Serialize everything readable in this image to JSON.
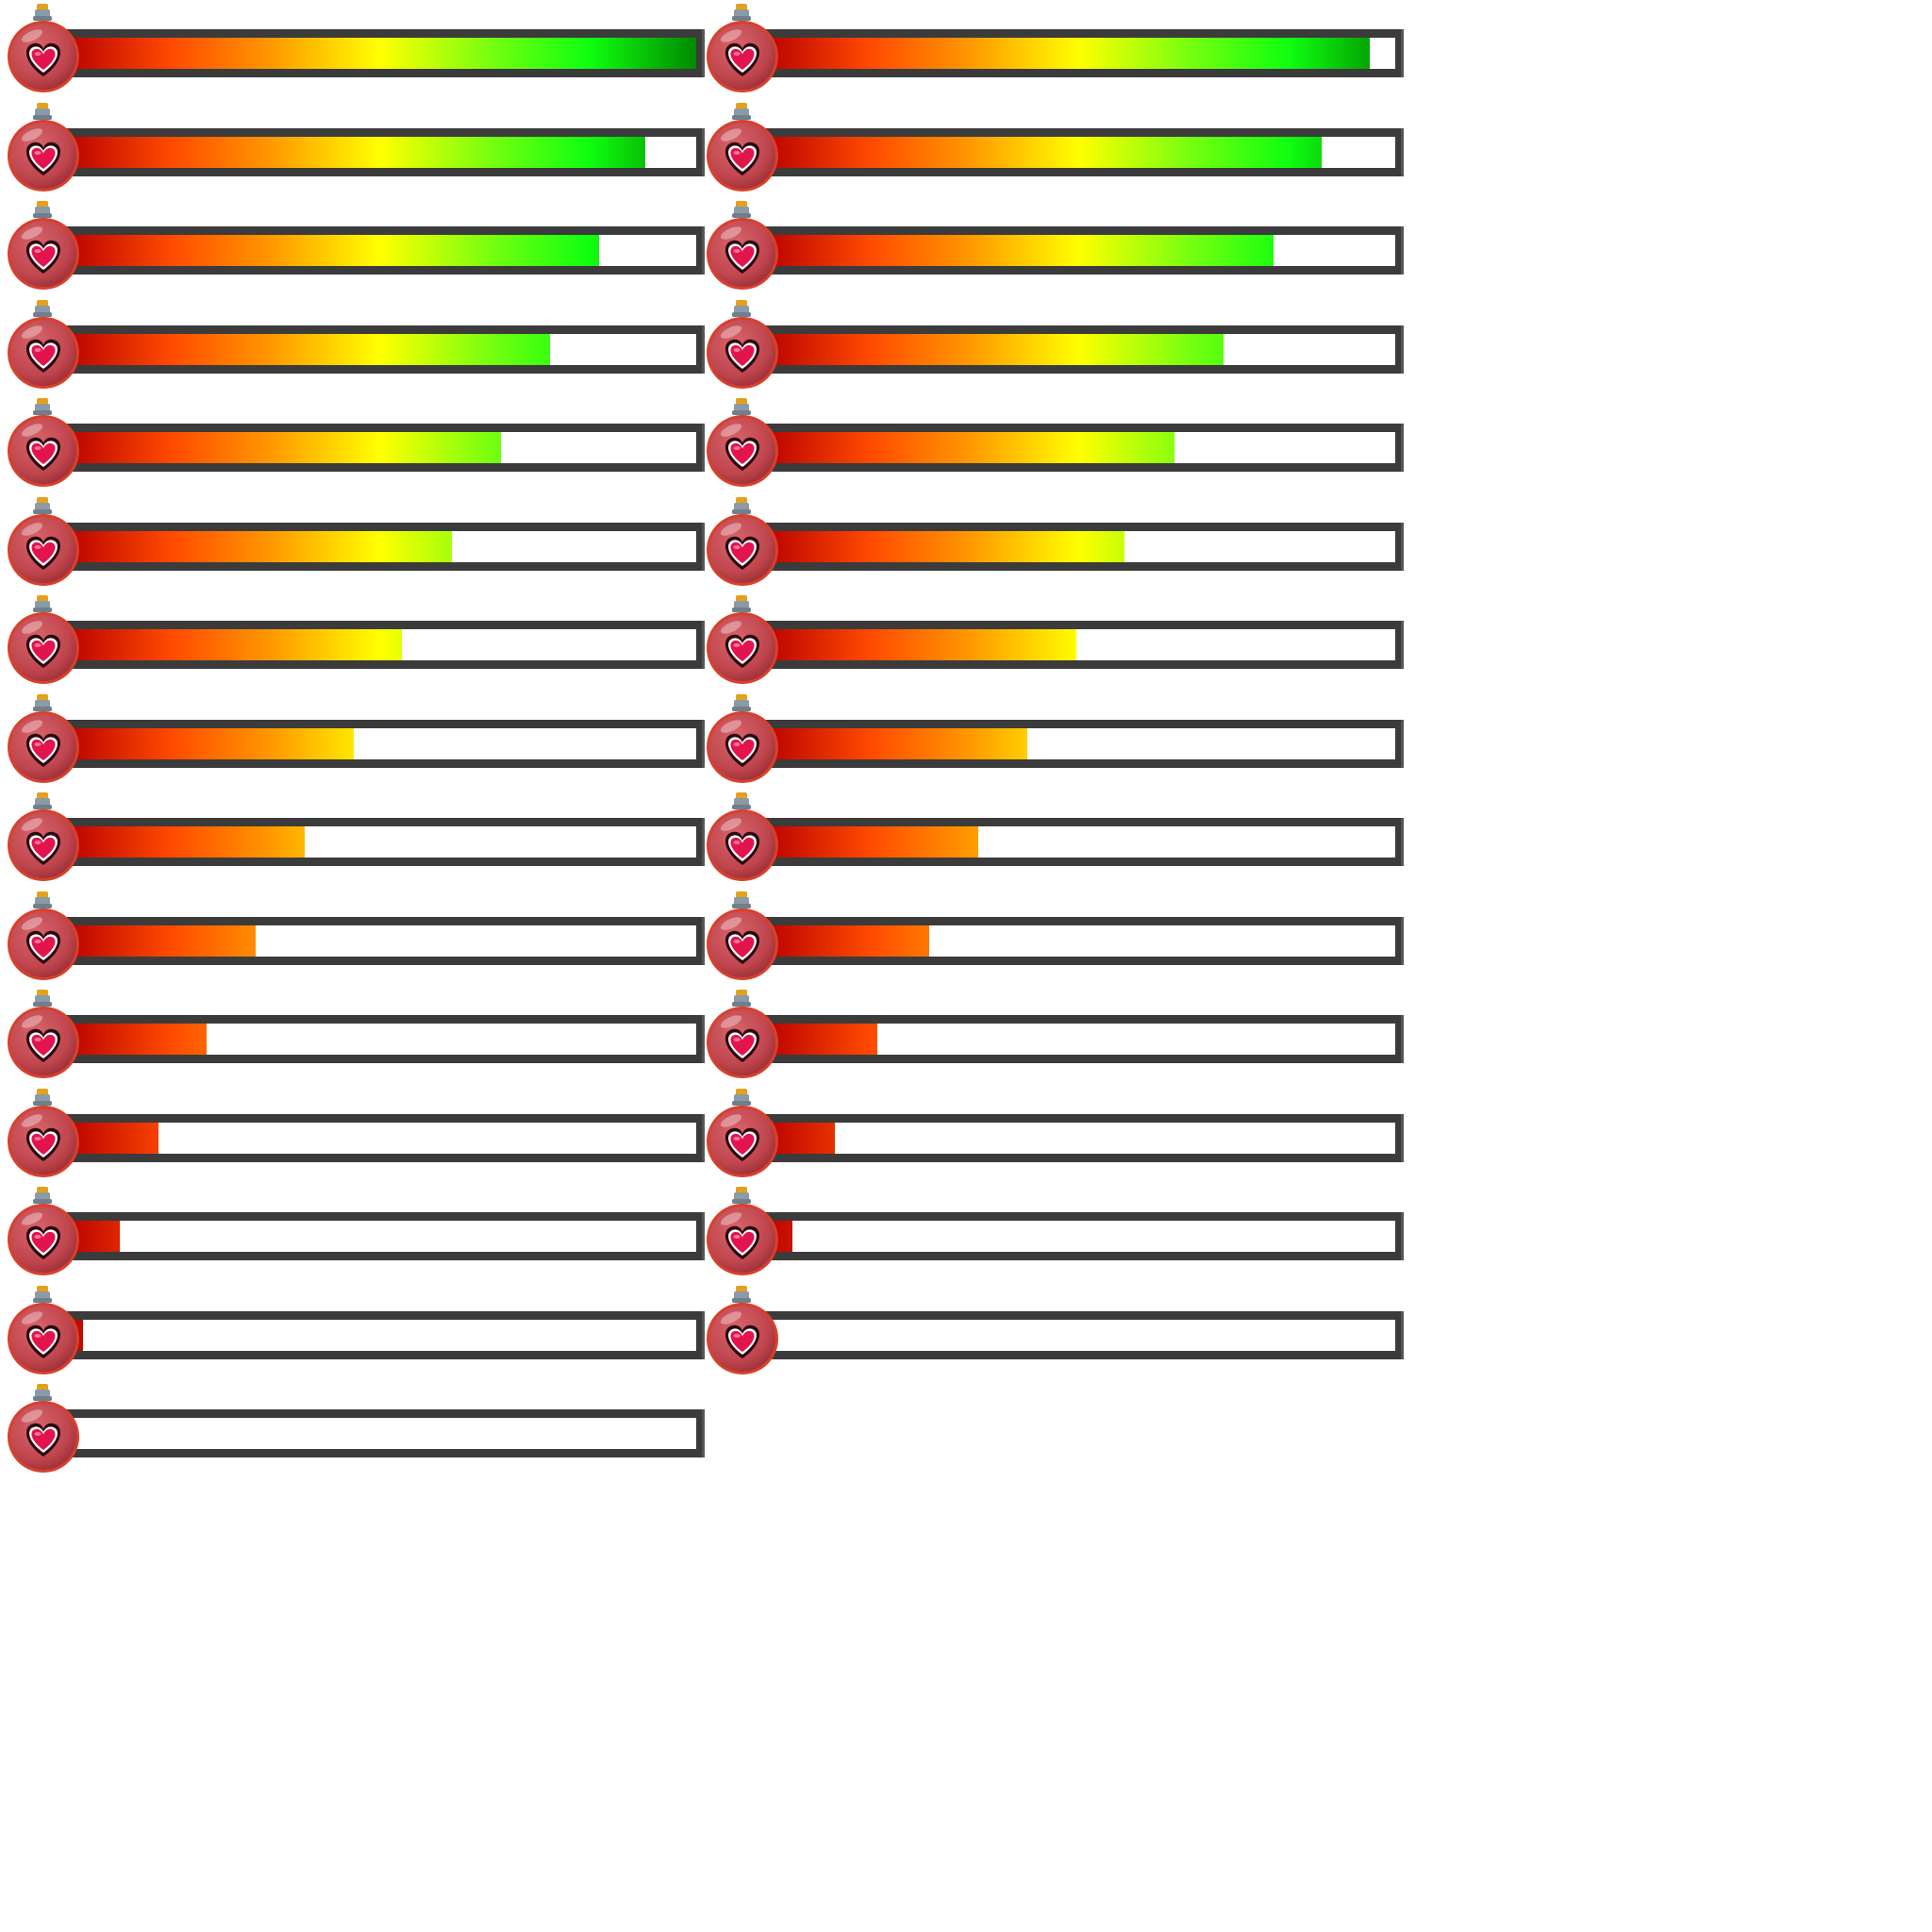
{
  "colors": {
    "frame": "#3b3b3b",
    "track": "#ffffff",
    "gradient": [
      "#b80000",
      "#ff4a00",
      "#ff9a00",
      "#ffff00",
      "#7aff10",
      "#10ff10",
      "#008a00"
    ],
    "potion_glass": "#c0464e",
    "potion_rim": "#d8402c",
    "heart": "#e3134d",
    "cork": "#e3a11c",
    "neck": "#8a9aa8"
  },
  "icon": "heart-potion-icon",
  "bars": [
    {
      "level": 1.0
    },
    {
      "level": 0.96
    },
    {
      "level": 0.92
    },
    {
      "level": 0.884
    },
    {
      "level": 0.846
    },
    {
      "level": 0.807
    },
    {
      "level": 0.768
    },
    {
      "level": 0.729
    },
    {
      "level": 0.691
    },
    {
      "level": 0.651
    },
    {
      "level": 0.613
    },
    {
      "level": 0.572
    },
    {
      "level": 0.534
    },
    {
      "level": 0.496
    },
    {
      "level": 0.458
    },
    {
      "level": 0.418
    },
    {
      "level": 0.38
    },
    {
      "level": 0.341
    },
    {
      "level": 0.303
    },
    {
      "level": 0.263
    },
    {
      "level": 0.226
    },
    {
      "level": 0.181
    },
    {
      "level": 0.149
    },
    {
      "level": 0.113
    },
    {
      "level": 0.088
    },
    {
      "level": 0.047
    },
    {
      "level": 0.03
    },
    {
      "level": 0.008
    },
    {
      "level": 0.0
    }
  ]
}
